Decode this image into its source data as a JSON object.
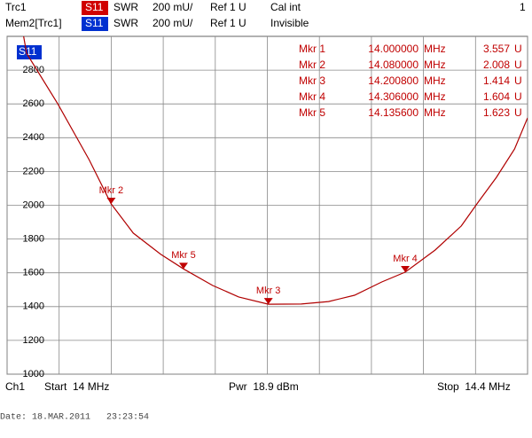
{
  "header": {
    "row1": {
      "trace": "Trc1",
      "param": "S11",
      "format": "SWR",
      "scale": "200 mU/",
      "ref": "Ref 1 U",
      "cal": "Cal int",
      "channel": "1"
    },
    "row2": {
      "trace": "Mem2[Trc1]",
      "param": "S11",
      "format": "SWR",
      "scale": "200 mU/",
      "ref": "Ref 1 U",
      "state": "Invisible"
    }
  },
  "plot_badge": "S11",
  "chart_data": {
    "type": "line",
    "x": [
      14.0,
      14.015,
      14.039,
      14.063,
      14.08,
      14.097,
      14.118,
      14.1356,
      14.158,
      14.178,
      14.2008,
      14.226,
      14.247,
      14.267,
      14.288,
      14.306,
      14.329,
      14.349,
      14.362,
      14.376,
      14.39,
      14.4
    ],
    "series": [
      {
        "color": "#b00000",
        "values": [
          3557,
          2900,
          2600,
          2270,
          2008,
          1835,
          1710,
          1623,
          1525,
          1457,
          1414,
          1415,
          1430,
          1467,
          1546,
          1604,
          1735,
          1877,
          2018,
          2165,
          2333,
          2517
        ]
      }
    ],
    "xlim": [
      14.0,
      14.4
    ],
    "xticks": [
      14.0,
      14.04,
      14.08,
      14.12,
      14.16,
      14.2,
      14.24,
      14.28,
      14.32,
      14.36,
      14.4
    ],
    "ylim": [
      1000,
      3000
    ],
    "yticks": [
      1000,
      1200,
      1400,
      1600,
      1800,
      2000,
      2200,
      2400,
      2600,
      2800
    ],
    "grid": true,
    "markers": {
      "names": [
        "Mkr 1",
        "Mkr 2",
        "Mkr 3",
        "Mkr 4",
        "Mkr 5"
      ],
      "x": [
        14.0,
        14.08,
        14.2008,
        14.306,
        14.1356
      ],
      "x_labels": [
        "14.000000",
        "14.080000",
        "14.200800",
        "14.306000",
        "14.135600"
      ],
      "x_unit": "MHz",
      "values": [
        3557,
        2008,
        1414,
        1604,
        1623
      ],
      "value_labels": [
        "3.557",
        "2.008",
        "1.414",
        "1.604",
        "1.623"
      ],
      "unit": "U",
      "color": "#c00000"
    }
  },
  "footer": {
    "channel": "Ch1",
    "start": "Start  14 MHz",
    "power": "Pwr  18.9 dBm",
    "stop": "Stop  14.4 MHz"
  },
  "date": "Date: 18.MAR.2011   23:23:54"
}
